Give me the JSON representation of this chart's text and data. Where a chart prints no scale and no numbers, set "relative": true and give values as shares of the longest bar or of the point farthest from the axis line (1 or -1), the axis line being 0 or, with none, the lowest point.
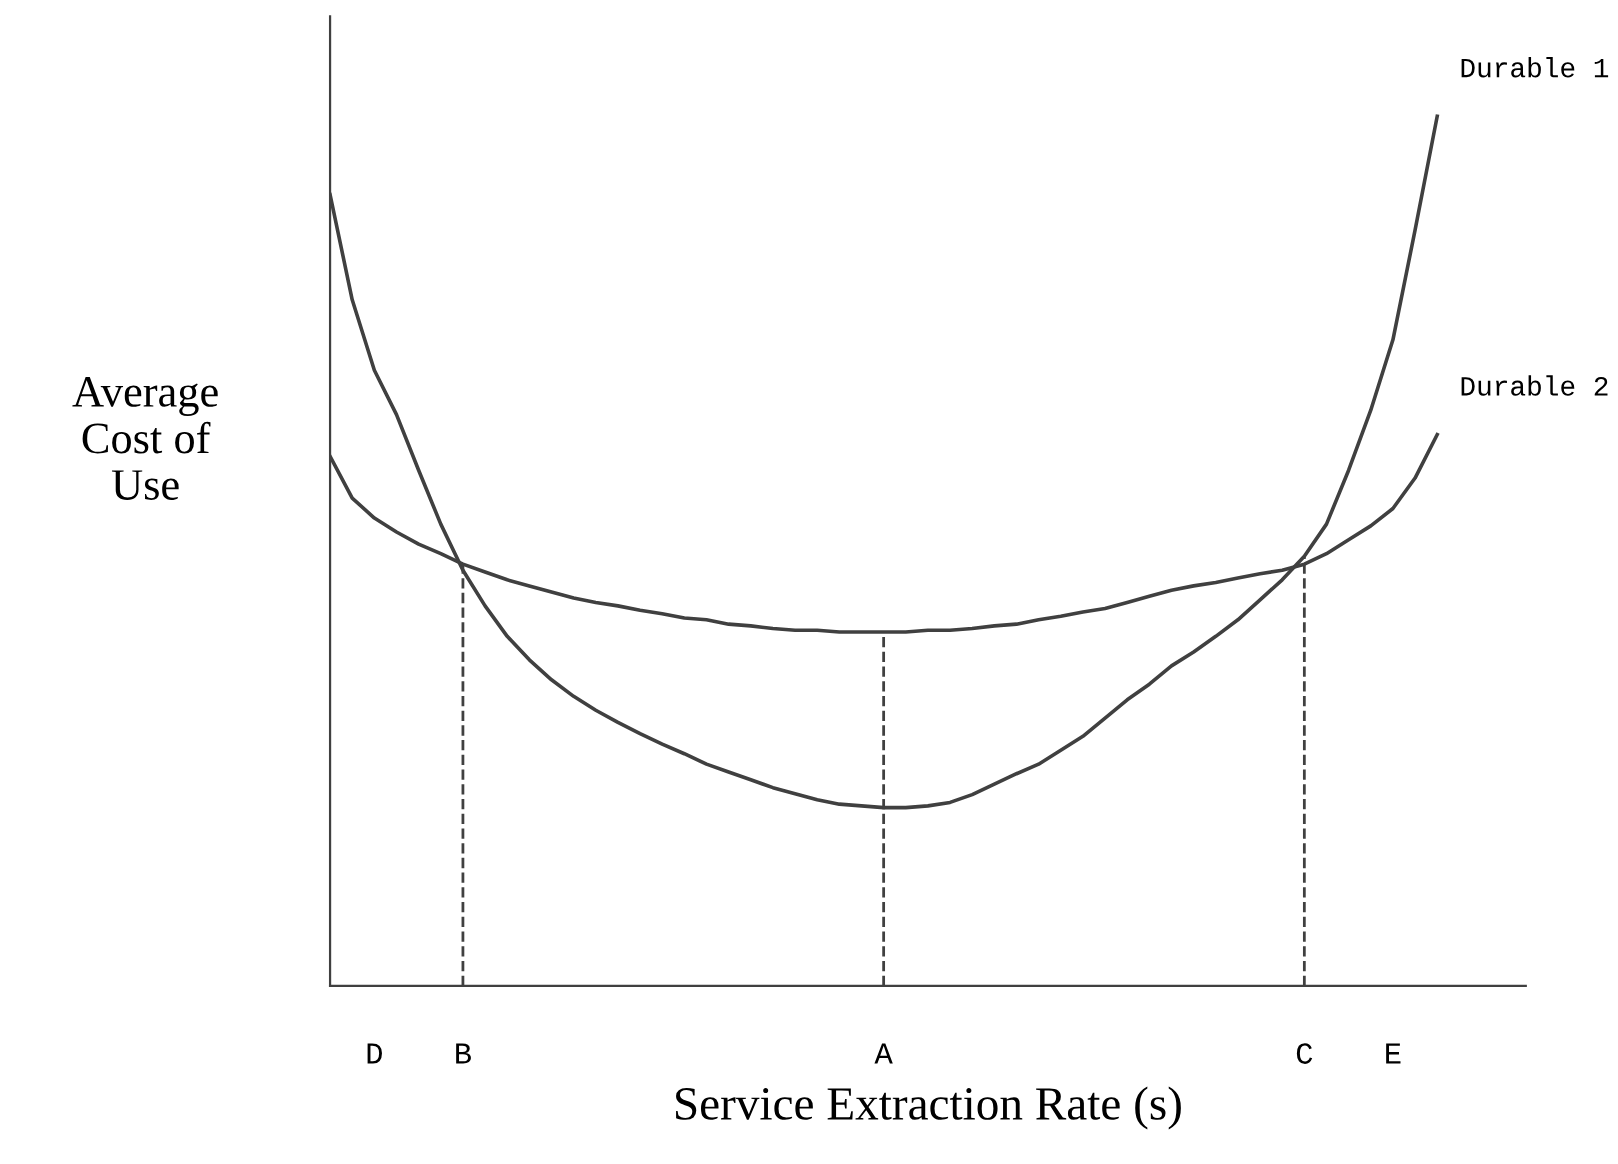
{
  "chart_data": {
    "type": "line",
    "relative": true,
    "xlabel": "Service Extraction Rate (s)",
    "ylabel": "Average\nCost of\nUse",
    "categories": [
      null,
      null,
      "D",
      null,
      null,
      null,
      "B",
      null,
      null,
      null,
      null,
      null,
      null,
      null,
      null,
      null,
      null,
      null,
      null,
      null,
      null,
      null,
      null,
      null,
      null,
      "A",
      null,
      null,
      null,
      null,
      null,
      null,
      null,
      null,
      null,
      null,
      null,
      null,
      null,
      null,
      null,
      null,
      null,
      null,
      "C",
      null,
      null,
      null,
      "E",
      null,
      null,
      null,
      null,
      null,
      null
    ],
    "series": [
      {
        "name": "Durable 1",
        "color": "#404040",
        "values": [
          0.91,
          0.789,
          0.708,
          0.657,
          0.593,
          0.531,
          0.478,
          0.437,
          0.402,
          0.375,
          0.352,
          0.333,
          0.317,
          0.303,
          0.29,
          0.278,
          0.267,
          0.255,
          0.246,
          0.237,
          0.228,
          0.221,
          0.214,
          0.209,
          0.207,
          0.205,
          0.205,
          0.207,
          0.211,
          0.22,
          0.232,
          0.244,
          0.255,
          0.271,
          0.287,
          0.308,
          0.329,
          0.347,
          0.368,
          0.384,
          0.402,
          0.421,
          0.444,
          0.467,
          0.494,
          0.531,
          0.593,
          0.662,
          0.743,
          0.869,
          1.0,
          null,
          null,
          null,
          null
        ]
      },
      {
        "name": "Durable 2",
        "color": "#404040",
        "values": [
          0.609,
          0.561,
          0.538,
          0.522,
          0.508,
          0.497,
          0.485,
          0.476,
          0.467,
          0.46,
          0.453,
          0.446,
          0.441,
          0.437,
          0.432,
          0.428,
          0.423,
          0.421,
          0.416,
          0.414,
          0.411,
          0.409,
          0.409,
          0.407,
          0.407,
          0.407,
          0.407,
          0.409,
          0.409,
          0.411,
          0.414,
          0.416,
          0.421,
          0.425,
          0.43,
          0.434,
          0.441,
          0.448,
          0.455,
          0.46,
          0.464,
          0.469,
          0.474,
          0.478,
          0.485,
          0.497,
          0.513,
          0.529,
          0.549,
          0.584,
          0.634,
          null,
          null,
          null,
          null
        ]
      }
    ],
    "ref_lines": [
      {
        "axis": "x",
        "value": "B",
        "line_style": "dashed",
        "color": "#404040"
      },
      {
        "axis": "x",
        "value": "A",
        "line_style": "dashed",
        "color": "#404040"
      },
      {
        "axis": "x",
        "value": "C",
        "line_style": "dashed",
        "color": "#404040"
      }
    ],
    "grid": false,
    "legend": false,
    "marker": "none",
    "line_style": "solid"
  }
}
